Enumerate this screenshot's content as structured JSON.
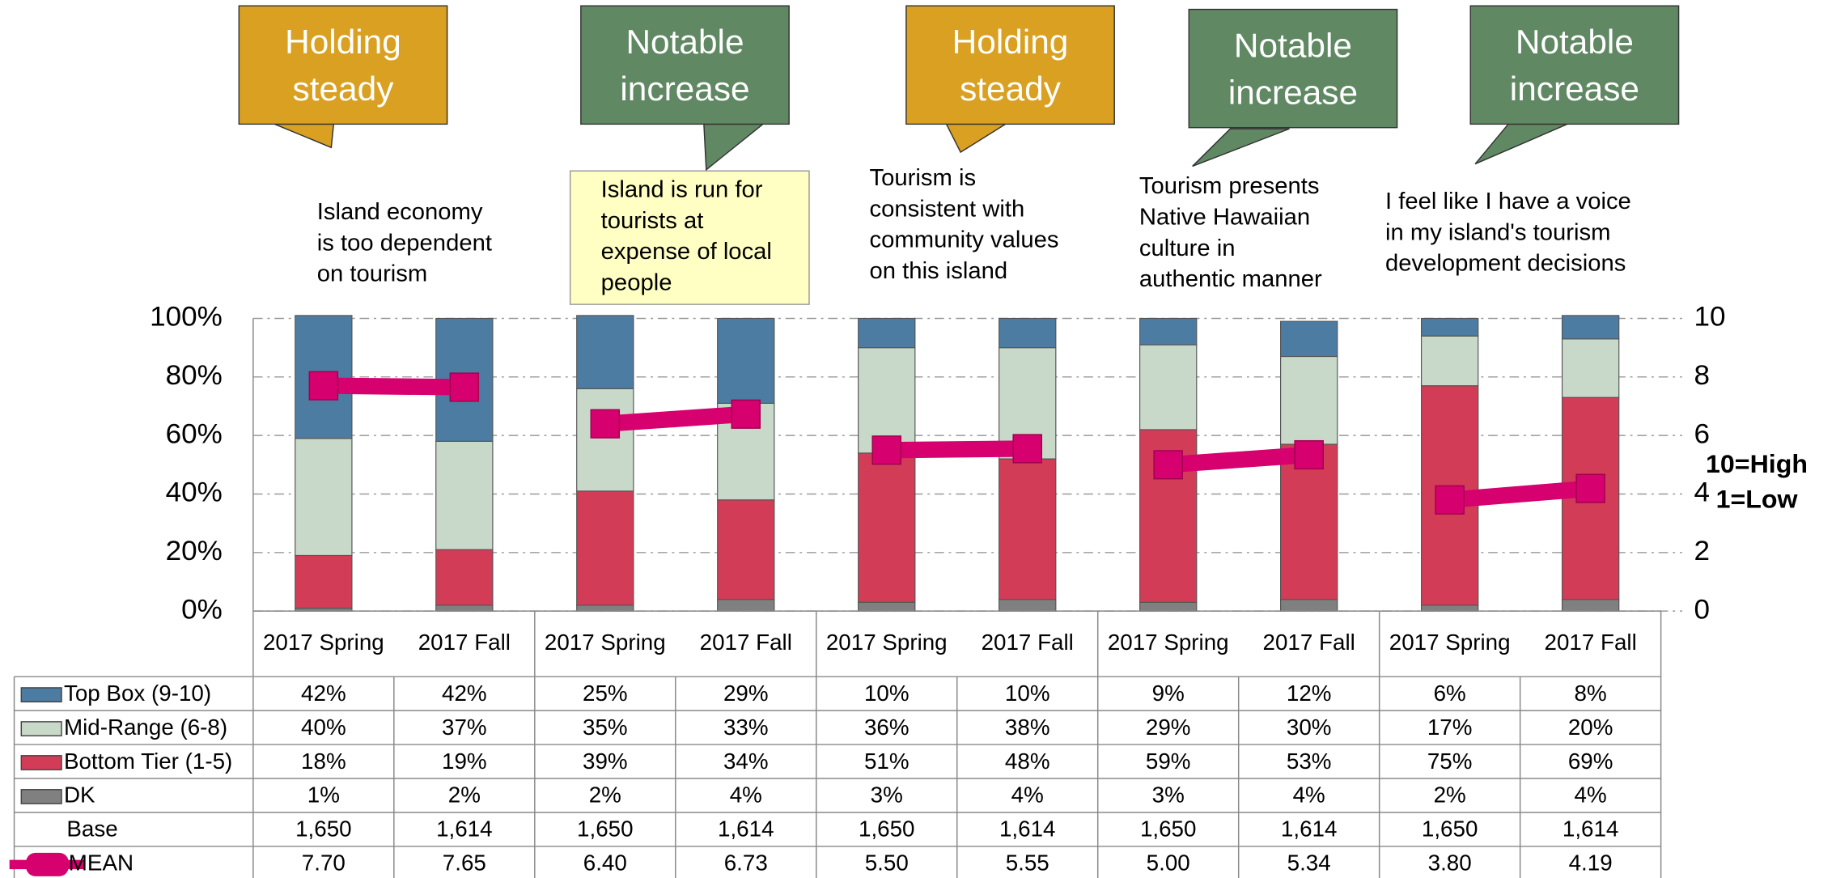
{
  "chart_data": {
    "type": "bar",
    "stacked": true,
    "categories": [
      "2017 Spring",
      "2017 Fall",
      "2017 Spring",
      "2017 Fall",
      "2017 Spring",
      "2017 Fall",
      "2017 Spring",
      "2017 Fall",
      "2017 Spring",
      "2017 Fall"
    ],
    "series": [
      {
        "name": "Top Box (9-10)",
        "color": "#4d7ca3",
        "values": [
          42,
          42,
          25,
          29,
          10,
          10,
          9,
          12,
          6,
          8
        ],
        "value_labels": [
          "42%",
          "42%",
          "25%",
          "29%",
          "10%",
          "10%",
          "9%",
          "12%",
          "6%",
          "8%"
        ]
      },
      {
        "name": "Mid-Range (6-8)",
        "color": "#c9d9c9",
        "values": [
          40,
          37,
          35,
          33,
          36,
          38,
          29,
          30,
          17,
          20
        ],
        "value_labels": [
          "40%",
          "37%",
          "35%",
          "33%",
          "36%",
          "38%",
          "29%",
          "30%",
          "17%",
          "20%"
        ]
      },
      {
        "name": "Bottom Tier (1-5)",
        "color": "#d33c57",
        "values": [
          18,
          19,
          39,
          34,
          51,
          48,
          59,
          53,
          75,
          69
        ],
        "value_labels": [
          "18%",
          "19%",
          "39%",
          "34%",
          "51%",
          "48%",
          "59%",
          "53%",
          "75%",
          "69%"
        ]
      },
      {
        "name": "DK",
        "color": "#808080",
        "values": [
          1,
          2,
          2,
          4,
          3,
          4,
          3,
          4,
          2,
          4
        ],
        "value_labels": [
          "1%",
          "2%",
          "2%",
          "4%",
          "3%",
          "4%",
          "3%",
          "4%",
          "2%",
          "4%"
        ]
      },
      {
        "name": "MEAN",
        "color": "#d6006e",
        "axis": "y2",
        "type": "line",
        "values": [
          7.7,
          7.65,
          6.4,
          6.73,
          5.5,
          5.55,
          5.0,
          5.34,
          3.8,
          4.19
        ],
        "value_labels": [
          "7.70",
          "7.65",
          "6.40",
          "6.73",
          "5.50",
          "5.55",
          "5.00",
          "5.34",
          "3.80",
          "4.19"
        ]
      }
    ],
    "base": {
      "name": "Base",
      "values": [
        1650,
        1614,
        1650,
        1614,
        1650,
        1614,
        1650,
        1614,
        1650,
        1614
      ],
      "value_labels": [
        "1,650",
        "1,614",
        "1,650",
        "1,614",
        "1,650",
        "1,614",
        "1,650",
        "1,614",
        "1,650",
        "1,614"
      ]
    },
    "ylim": [
      0,
      100
    ],
    "yticks": [
      {
        "value": 0,
        "label": "0%"
      },
      {
        "value": 20,
        "label": "20%"
      },
      {
        "value": 40,
        "label": "40%"
      },
      {
        "value": 60,
        "label": "60%"
      },
      {
        "value": 80,
        "label": "80%"
      },
      {
        "value": 100,
        "label": "100%"
      }
    ],
    "y2lim": [
      0,
      10
    ],
    "y2ticks": [
      0,
      2,
      4,
      6,
      8,
      10
    ],
    "y2_note": [
      "10=High",
      "1=Low"
    ],
    "grid": true,
    "callouts": [
      {
        "text": [
          "Holding",
          "steady"
        ],
        "color": "#d9a021"
      },
      {
        "text": [
          "Notable",
          "increase"
        ],
        "color": "#5f8863"
      },
      {
        "text": [
          "Holding",
          "steady"
        ],
        "color": "#d9a021"
      },
      {
        "text": [
          "Notable",
          "increase"
        ],
        "color": "#5f8863"
      },
      {
        "text": [
          "Notable",
          "increase"
        ],
        "color": "#5f8863"
      }
    ],
    "statements": [
      [
        "Island economy",
        "is too dependent",
        "on tourism"
      ],
      [
        "Island is run for",
        "tourists at",
        "expense of local",
        "people"
      ],
      [
        "Tourism is",
        "consistent with",
        "community values",
        "on this island"
      ],
      [
        "Tourism presents",
        "Native Hawaiian",
        "culture in",
        "authentic manner"
      ],
      [
        "I feel like I have a voice",
        "in my island's tourism",
        "development decisions"
      ]
    ]
  }
}
